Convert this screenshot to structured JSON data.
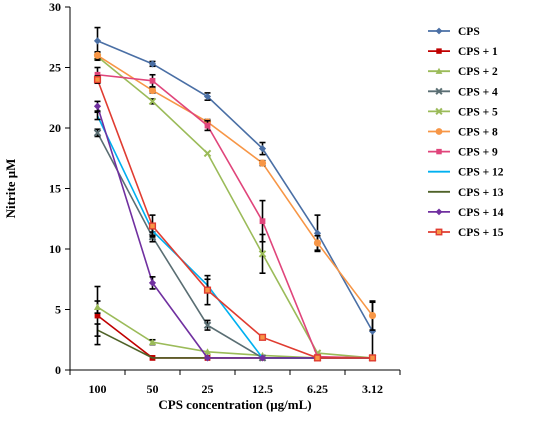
{
  "chart_data": {
    "type": "line",
    "xlabel": "CPS concentration (μg/mL)",
    "ylabel": "Nitrite μM",
    "categories": [
      "100",
      "50",
      "25",
      "12.5",
      "6.25",
      "3.12"
    ],
    "ylim": [
      0,
      30
    ],
    "yticks": [
      0,
      5,
      10,
      15,
      20,
      25,
      30
    ],
    "grid": false,
    "legend_position": "right",
    "series": [
      {
        "name": "CPS",
        "color": "#4a6fa5",
        "marker": "diamond",
        "values": [
          27.2,
          25.3,
          22.6,
          18.3,
          11.3,
          3.2
        ],
        "errors": [
          1.1,
          0.2,
          0.3,
          0.5,
          1.5,
          2.4
        ]
      },
      {
        "name": "CPS + 1",
        "color": "#c00000",
        "marker": "square",
        "values": [
          4.5,
          1.0,
          1.0,
          1.0,
          1.0,
          1.0
        ],
        "errors": [
          2.4,
          0.1,
          0.1,
          0.1,
          0.1,
          0.1
        ]
      },
      {
        "name": "CPS + 2",
        "color": "#9bbb59",
        "marker": "triangle",
        "values": [
          5.2,
          2.3,
          1.5,
          1.2,
          1.0,
          1.0
        ],
        "errors": [
          0.5,
          0.2,
          0.1,
          0.1,
          0.1,
          0.1
        ]
      },
      {
        "name": "CPS + 4",
        "color": "#5a6e73",
        "marker": "x",
        "values": [
          19.6,
          11.0,
          3.7,
          1.0,
          1.0,
          1.0
        ],
        "errors": [
          0.3,
          0.4,
          0.4,
          0.1,
          0.1,
          0.1
        ]
      },
      {
        "name": "CPS + 5",
        "color": "#9bbb59",
        "marker": "x",
        "values": [
          25.9,
          22.2,
          17.9,
          9.6,
          1.4,
          1.0
        ],
        "errors": [
          0.3,
          0.2,
          0.1,
          1.6,
          0.1,
          0.1
        ]
      },
      {
        "name": "CPS + 8",
        "color": "#f79646",
        "marker": "circle",
        "values": [
          26.0,
          23.1,
          20.5,
          17.1,
          10.5,
          4.5
        ],
        "errors": [
          0.3,
          0.2,
          0.2,
          0.2,
          0.6,
          1.2
        ]
      },
      {
        "name": "CPS + 9",
        "color": "#e0457b",
        "marker": "square",
        "values": [
          24.4,
          23.9,
          20.2,
          12.3,
          1.1,
          1.0
        ],
        "errors": [
          0.6,
          0.5,
          0.4,
          1.7,
          0.1,
          0.1
        ]
      },
      {
        "name": "CPS + 12",
        "color": "#00b0f0",
        "marker": "none",
        "values": [
          21.0,
          11.5,
          7.0,
          1.0,
          1.0,
          1.0
        ],
        "errors": [
          0.3,
          0.4,
          0.5,
          0.1,
          0.1,
          0.1
        ]
      },
      {
        "name": "CPS + 13",
        "color": "#4f6228",
        "marker": "none",
        "values": [
          3.3,
          1.0,
          1.0,
          1.0,
          1.0,
          1.0
        ],
        "errors": [
          0.5,
          0.1,
          0.1,
          0.1,
          0.1,
          0.1
        ]
      },
      {
        "name": "CPS + 14",
        "color": "#7030a0",
        "marker": "diamond",
        "values": [
          21.8,
          7.2,
          1.0,
          1.0,
          1.0,
          1.0
        ],
        "errors": [
          0.4,
          0.5,
          0.1,
          0.1,
          0.1,
          0.1
        ]
      },
      {
        "name": "CPS + 15",
        "color": "#e03c31",
        "marker": "square-orange",
        "values": [
          24.0,
          11.9,
          6.6,
          2.7,
          1.0,
          1.0
        ],
        "errors": [
          0.3,
          0.9,
          1.2,
          0.1,
          0.1,
          0.1
        ]
      }
    ]
  }
}
